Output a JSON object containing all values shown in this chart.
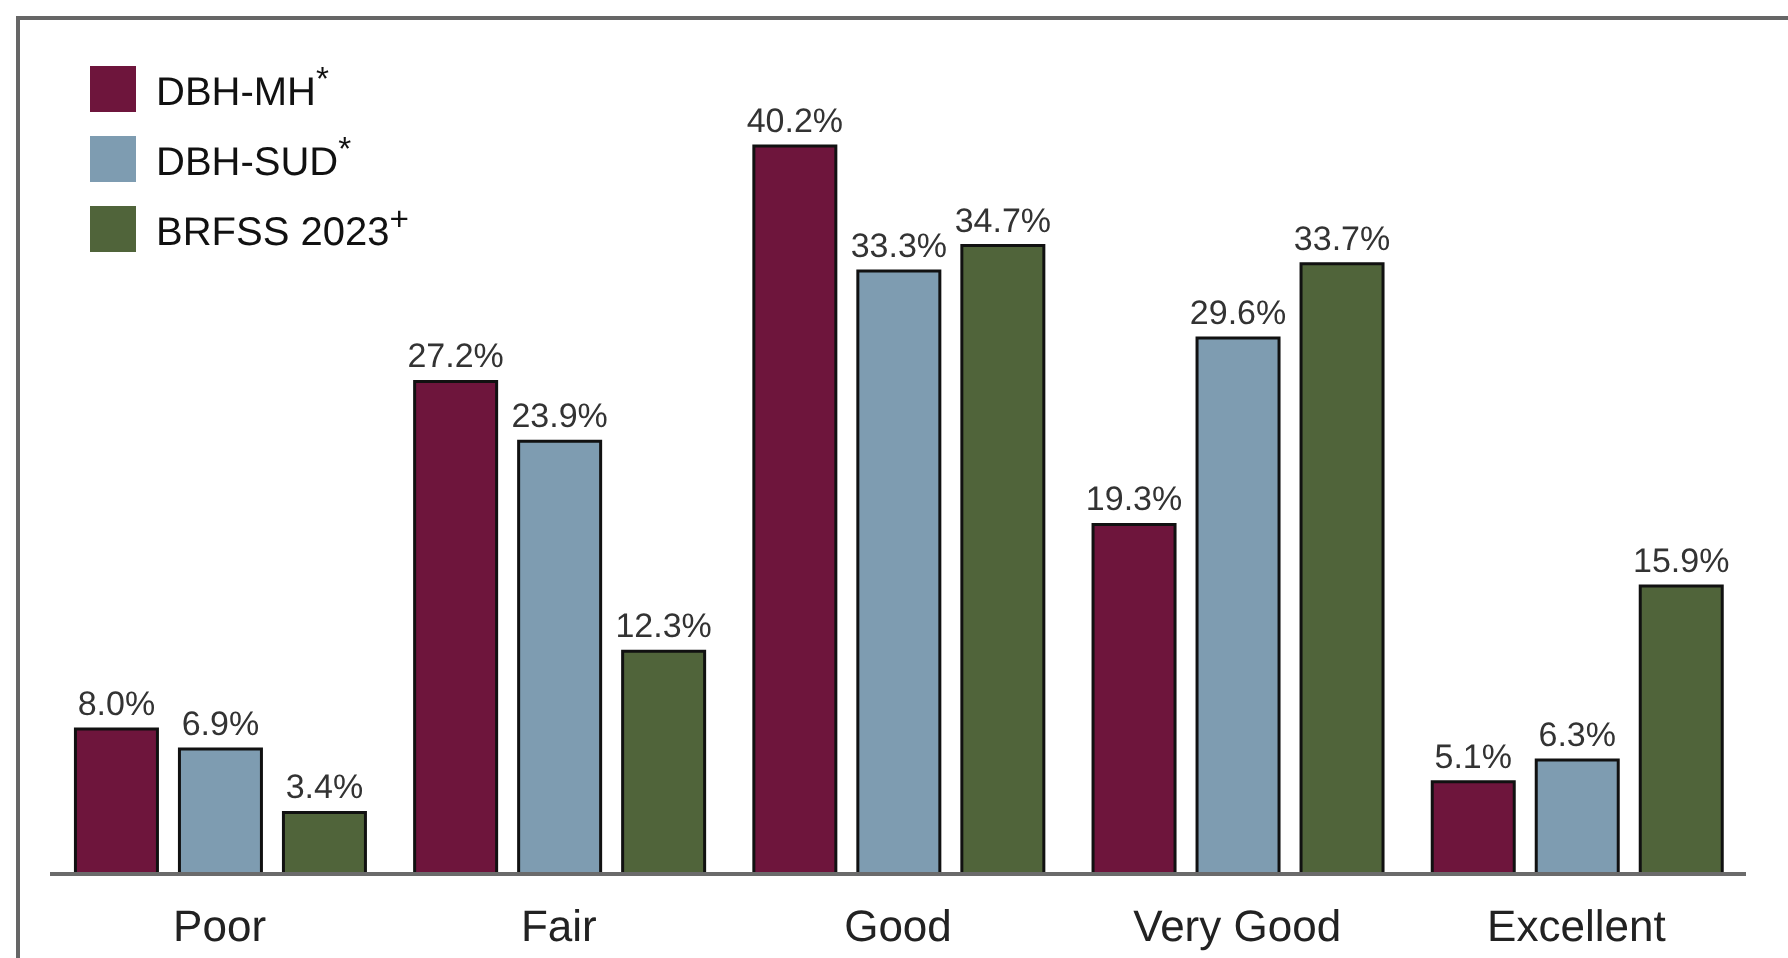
{
  "chart_data": {
    "type": "bar",
    "categories": [
      "Poor",
      "Fair",
      "Good",
      "Very Good",
      "Excellent"
    ],
    "series": [
      {
        "name": "DBH-MH$^{*}$",
        "color": "#6e153c",
        "values": [
          8.0,
          27.2,
          40.2,
          19.3,
          5.1
        ],
        "value_labels": [
          "8.0%",
          "27.2%",
          "40.2%",
          "19.3%",
          "5.1%"
        ]
      },
      {
        "name": "DBH-SUD$^{*}$",
        "color": "#7e9cb1",
        "values": [
          6.9,
          23.9,
          33.3,
          29.6,
          6.3
        ],
        "value_labels": [
          "6.9%",
          "23.9%",
          "33.3%",
          "29.6%",
          "6.3%"
        ]
      },
      {
        "name": "BRFSS 2023$^{+}$",
        "color": "#50643a",
        "values": [
          3.4,
          12.3,
          34.7,
          33.7,
          15.9
        ],
        "value_labels": [
          "3.4%",
          "12.3%",
          "34.7%",
          "33.7%",
          "15.9%"
        ]
      }
    ],
    "legend": "top left"
  }
}
